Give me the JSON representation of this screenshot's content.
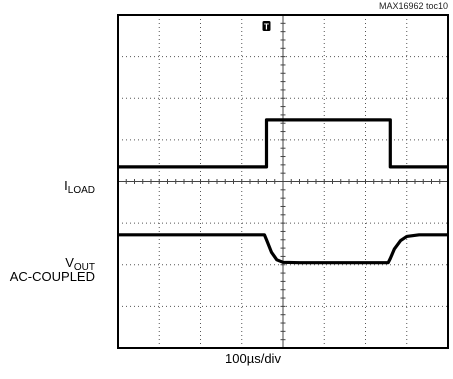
{
  "figure_id": "MAX16962 toc10",
  "chart_data": {
    "type": "line",
    "title": "",
    "xlabel": "100µs/div",
    "ylabel": "",
    "grid": true,
    "divisions": {
      "x": 8,
      "y": 8
    },
    "xlim": [
      0,
      8
    ],
    "ylim": [
      0,
      8
    ],
    "trigger_marker": {
      "label": "T",
      "x": 3.6
    },
    "series": [
      {
        "name_main": "I",
        "name_sub": "LOAD",
        "x": [
          0,
          3.6,
          3.6,
          6.6,
          6.6,
          8
        ],
        "y": [
          4.35,
          4.35,
          5.48,
          5.48,
          4.35,
          4.35
        ]
      },
      {
        "name_main": "V",
        "name_sub": "OUT",
        "name_line2": "AC-COUPLED",
        "x": [
          0,
          3.55,
          3.6,
          3.72,
          3.85,
          4.0,
          4.4,
          6.55,
          6.6,
          6.7,
          6.85,
          7.0,
          7.3,
          8
        ],
        "y": [
          2.72,
          2.72,
          2.6,
          2.3,
          2.12,
          2.06,
          2.05,
          2.05,
          2.15,
          2.38,
          2.58,
          2.68,
          2.72,
          2.72
        ]
      }
    ]
  }
}
